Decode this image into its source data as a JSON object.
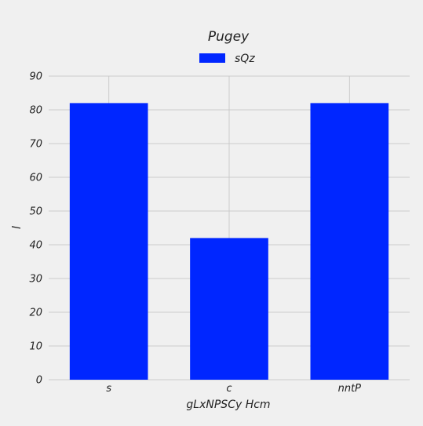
{
  "chart_data": {
    "type": "bar",
    "title": "Pugey",
    "xlabel": "gLxNPSCy Hcm",
    "ylabel": "l",
    "categories": [
      "s",
      "c",
      "nntP"
    ],
    "series": [
      {
        "name": "sQz",
        "values": [
          82,
          42,
          82
        ]
      }
    ],
    "ylim": [
      0,
      90
    ],
    "yticks": [
      0,
      10,
      20,
      30,
      40,
      50,
      60,
      70,
      80,
      90
    ],
    "grid": true,
    "legend_position": "top-center",
    "colors": {
      "background": "#f0f0f0",
      "bar": "#0026ff",
      "grid": "#cbcbcb",
      "text": "#222222"
    }
  }
}
